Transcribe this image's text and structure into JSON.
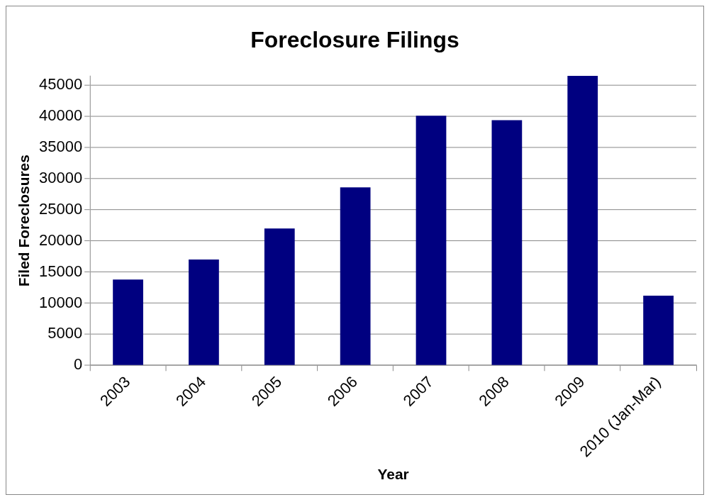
{
  "chart_data": {
    "type": "bar",
    "title": "Foreclosure Filings",
    "xlabel": "Year",
    "ylabel": "Filed Foreclosures",
    "categories": [
      "2003",
      "2004",
      "2005",
      "2006",
      "2007",
      "2008",
      "2009",
      "2010 (Jan-Mar)"
    ],
    "values": [
      13800,
      17000,
      22000,
      28600,
      40100,
      39400,
      46500,
      11200
    ],
    "color": "#000080",
    "ylim": [
      0,
      46500
    ],
    "yticks": [
      0,
      5000,
      10000,
      15000,
      20000,
      25000,
      30000,
      35000,
      40000,
      45000
    ],
    "grid": "y",
    "legend": false
  }
}
